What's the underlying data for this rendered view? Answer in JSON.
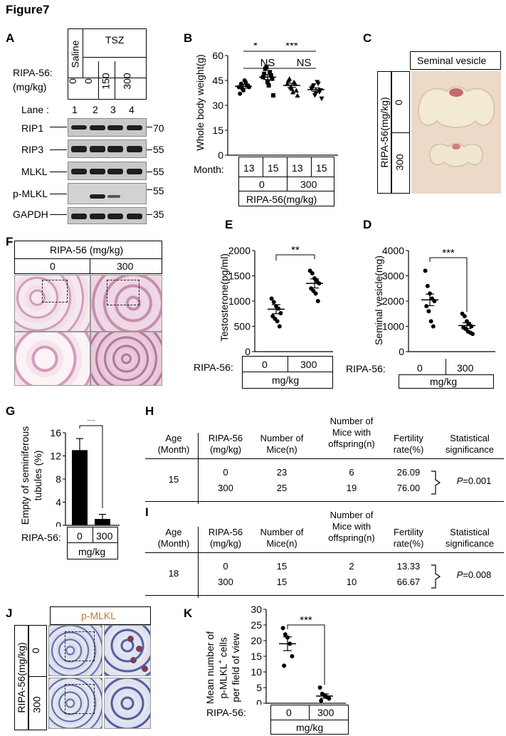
{
  "figure_title": "Figure7",
  "panels": {
    "A": {
      "label": "A",
      "header_saline": "Saline",
      "header_tsz": "TSZ",
      "dose_label": "RIPA-56:\n(mg/kg)",
      "dose_label_1": "RIPA-56:",
      "dose_label_2": "(mg/kg)",
      "doses": [
        "0",
        "0",
        "150",
        "300"
      ],
      "lane_label": "Lane :",
      "lanes": [
        "1",
        "2",
        "3",
        "4"
      ],
      "blots": [
        {
          "name": "RIP1",
          "mw": "70"
        },
        {
          "name": "RIP3",
          "mw": "55"
        },
        {
          "name": "MLKL",
          "mw": "55"
        },
        {
          "name": "p-MLKL",
          "mw": "55"
        },
        {
          "name": "GAPDH",
          "mw": "35"
        }
      ]
    },
    "B": {
      "label": "B",
      "ylabel": "Whole body weight(g)",
      "month_label": "Month:",
      "months": [
        "13",
        "15",
        "13",
        "15"
      ],
      "groups": [
        "0",
        "300"
      ],
      "xlabel": "RIPA-56(mg/kg)",
      "sig_top": [
        "*",
        "***"
      ],
      "sig_ns": [
        "NS",
        "NS"
      ]
    },
    "C": {
      "label": "C",
      "title": "Seminal vesicle",
      "side_label": "RIPA-56(mg/kg)",
      "rows": [
        "0",
        "300"
      ]
    },
    "D": {
      "label": "D",
      "ylabel": "Seminal vesicle(mg)",
      "x_label": "RIPA-56:",
      "groups": [
        "0",
        "300"
      ],
      "unit": "mg/kg",
      "sig": "***"
    },
    "E": {
      "label": "E",
      "ylabel": "Testosterone(pg/ml)",
      "x_label": "RIPA-56:",
      "groups": [
        "0",
        "300"
      ],
      "unit": "mg/kg",
      "sig": "**"
    },
    "F": {
      "label": "F",
      "title": "RIPA-56 (mg/kg)",
      "groups": [
        "0",
        "300"
      ]
    },
    "G": {
      "label": "G",
      "ylabel_1": "Empty of seminiferous",
      "ylabel_2": "tubules (%)",
      "x_label": "RIPA-56:",
      "groups": [
        "0",
        "300"
      ],
      "unit": "mg/kg",
      "sig": "**"
    },
    "H": {
      "label": "H",
      "headers": [
        "Age\n(Month)",
        "RIPA-56\n(mg/kg)",
        "Number of\nMice(n)",
        "Number of\nMice with\noffspring(n)",
        "Fertility\nrate(%)",
        "Statistical\nsignificance"
      ],
      "age": "15",
      "rows": [
        {
          "dose": "0",
          "mice": "23",
          "offspring": "6",
          "rate": "26.09"
        },
        {
          "dose": "300",
          "mice": "25",
          "offspring": "19",
          "rate": "76.00"
        }
      ],
      "p_prefix": "P",
      "p_value": "=0.001"
    },
    "I": {
      "label": "I",
      "headers": [
        "Age\n(Month)",
        "RIPA-56\n(mg/kg)",
        "Number of\nMice(n)",
        "Number of\nMice with\noffspring(n)",
        "Fertility\nrate(%)",
        "Statistical\nsignificance"
      ],
      "age": "18",
      "rows": [
        {
          "dose": "0",
          "mice": "15",
          "offspring": "2",
          "rate": "13.33"
        },
        {
          "dose": "300",
          "mice": "15",
          "offspring": "10",
          "rate": "66.67"
        }
      ],
      "p_prefix": "P",
      "p_value": "=0.008"
    },
    "J": {
      "label": "J",
      "title": "p-MLKL",
      "side_label": "RIPA-56(mg/kg)",
      "rows": [
        "0",
        "300"
      ]
    },
    "K": {
      "label": "K",
      "ylabel_1": "Mean number of",
      "ylabel_2": "p-MLKL",
      "ylabel_sup": "+",
      "ylabel_2b": " cells",
      "ylabel_3": "per field of view",
      "x_label": "RIPA-56:",
      "groups": [
        "0",
        "300"
      ],
      "unit": "mg/kg",
      "sig": "***"
    }
  },
  "chart_data": [
    {
      "panel": "B",
      "type": "scatter",
      "ylabel": "Whole body weight(g)",
      "ylim": [
        0,
        60
      ],
      "yticks": [
        0,
        15,
        30,
        45,
        60
      ],
      "categories": [
        "13 / 0",
        "15 / 0",
        "13 / 300",
        "15 / 300"
      ],
      "series": [
        {
          "values": [
            41,
            43,
            39,
            44,
            42,
            37,
            40,
            45,
            42,
            41
          ]
        },
        {
          "values": [
            47,
            52,
            44,
            50,
            46,
            49,
            53,
            42,
            48,
            36
          ]
        },
        {
          "values": [
            43,
            46,
            40,
            44,
            39,
            45,
            41,
            38,
            43,
            36
          ]
        },
        {
          "values": [
            40,
            42,
            37,
            43,
            39,
            41,
            36,
            44,
            38,
            34
          ]
        }
      ],
      "means": [
        41.5,
        47,
        42,
        39.5
      ]
    },
    {
      "panel": "E",
      "type": "scatter",
      "ylabel": "Testosterone(pg/ml)",
      "ylim": [
        0,
        2000
      ],
      "yticks": [
        0,
        500,
        1000,
        1500,
        2000
      ],
      "categories": [
        "0",
        "300"
      ],
      "series": [
        {
          "values": [
            1050,
            980,
            900,
            850,
            760,
            700,
            650,
            600,
            500
          ]
        },
        {
          "values": [
            1600,
            1550,
            1450,
            1400,
            1350,
            1250,
            1200,
            1150,
            1000
          ]
        }
      ],
      "means": [
        840,
        1350
      ]
    },
    {
      "panel": "D",
      "type": "scatter",
      "ylabel": "Seminal vesicle(mg)",
      "ylim": [
        0,
        4000
      ],
      "yticks": [
        0,
        1000,
        2000,
        3000,
        4000
      ],
      "categories": [
        "0",
        "300"
      ],
      "series": [
        {
          "values": [
            3200,
            2600,
            2300,
            2100,
            2000,
            1800,
            1600,
            1200,
            1000
          ]
        },
        {
          "values": [
            1500,
            1400,
            1200,
            1100,
            1000,
            950,
            900,
            800,
            750,
            700
          ]
        }
      ],
      "means": [
        2050,
        1030
      ]
    },
    {
      "panel": "G",
      "type": "bar",
      "ylabel": "Empty of seminiferous tubules (%)",
      "ylim": [
        0,
        16
      ],
      "yticks": [
        0,
        4,
        8,
        12,
        16
      ],
      "categories": [
        "0",
        "300"
      ],
      "values": [
        13,
        1.1
      ],
      "errors": [
        2,
        0.8
      ]
    },
    {
      "panel": "K",
      "type": "scatter",
      "ylabel": "Mean number of p-MLKL+ cells per field of view",
      "ylim": [
        0,
        30
      ],
      "yticks": [
        0,
        5,
        10,
        15,
        20,
        25,
        30
      ],
      "categories": [
        "0",
        "300"
      ],
      "series": [
        {
          "values": [
            24,
            22,
            21,
            19,
            15,
            12
          ]
        },
        {
          "values": [
            5,
            3,
            2.5,
            2,
            1.5,
            0.8
          ]
        }
      ],
      "means": [
        19,
        2.3
      ]
    }
  ]
}
